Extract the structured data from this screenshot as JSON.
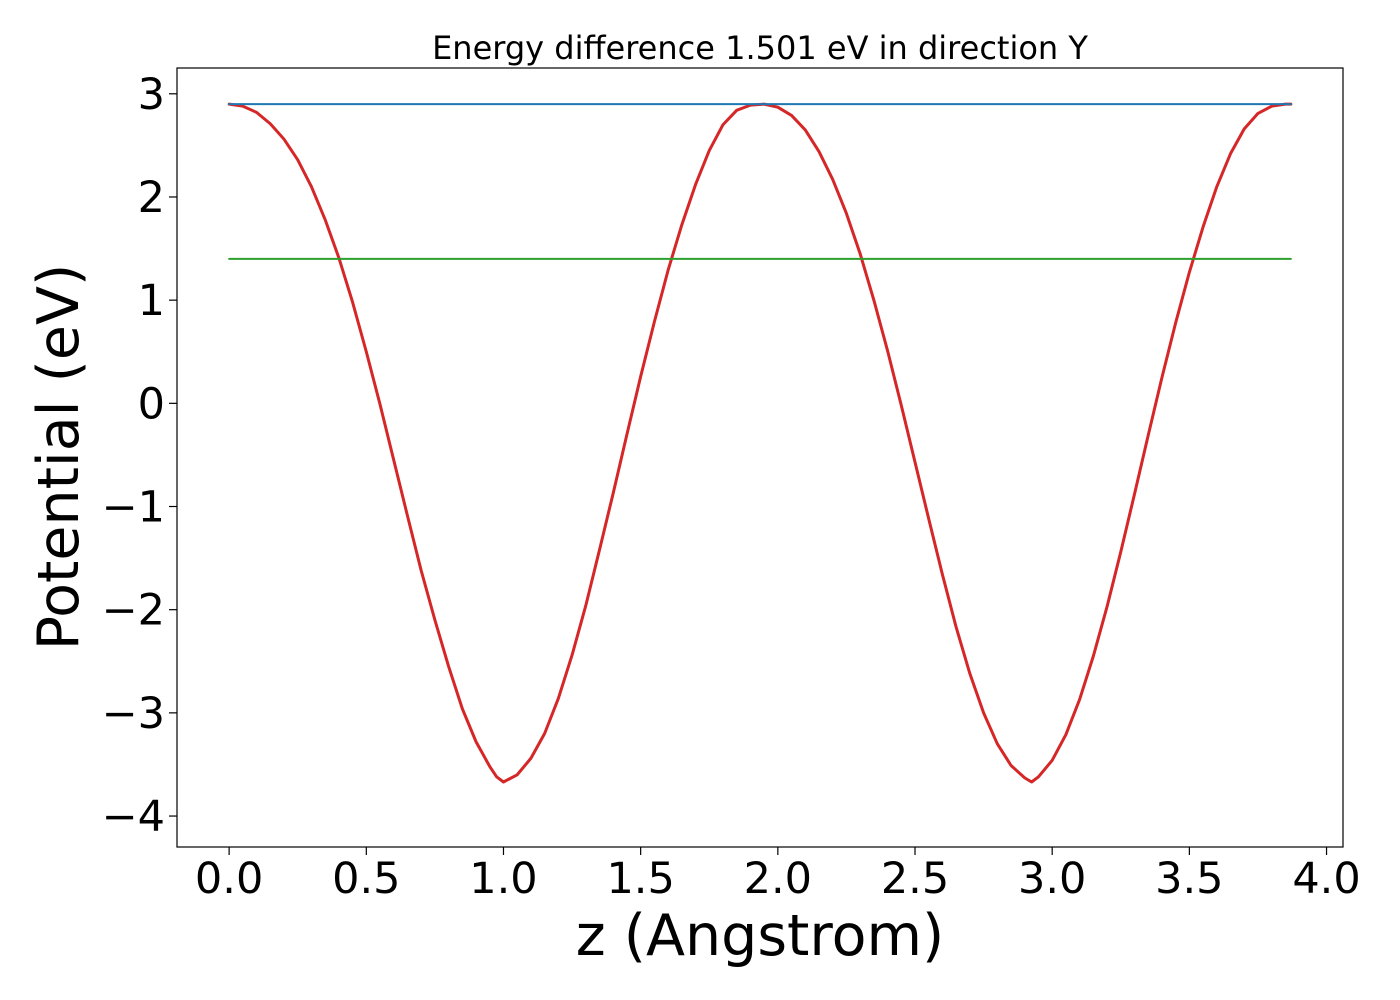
{
  "chart_data": {
    "type": "line",
    "title": "Energy difference 1.501 eV in direction Y",
    "xlabel": "z (Angstrom)",
    "ylabel": "Potential (eV)",
    "xlim": [
      -0.19,
      4.06
    ],
    "ylim": [
      -4.3,
      3.25
    ],
    "x_ticks": [
      0.0,
      0.5,
      1.0,
      1.5,
      2.0,
      2.5,
      3.0,
      3.5,
      4.0
    ],
    "x_tick_labels": [
      "0.0",
      "0.5",
      "1.0",
      "1.5",
      "2.0",
      "2.5",
      "3.0",
      "3.5",
      "4.0"
    ],
    "y_ticks": [
      -4,
      -3,
      -2,
      -1,
      0,
      1,
      2,
      3
    ],
    "y_tick_labels": [
      "−4",
      "−3",
      "−2",
      "−1",
      "0",
      "1",
      "2",
      "3"
    ],
    "grid": false,
    "series": [
      {
        "color": "#d62728",
        "kind": "curve",
        "x": [
          0.0,
          0.05,
          0.1,
          0.15,
          0.2,
          0.25,
          0.3,
          0.35,
          0.4,
          0.45,
          0.5,
          0.55,
          0.6,
          0.65,
          0.7,
          0.75,
          0.8,
          0.85,
          0.9,
          0.95,
          0.975,
          1.0,
          1.05,
          1.1,
          1.15,
          1.2,
          1.25,
          1.3,
          1.35,
          1.4,
          1.45,
          1.5,
          1.55,
          1.6,
          1.65,
          1.7,
          1.75,
          1.8,
          1.85,
          1.9,
          1.95,
          2.0,
          2.05,
          2.1,
          2.15,
          2.2,
          2.25,
          2.3,
          2.35,
          2.4,
          2.45,
          2.5,
          2.55,
          2.6,
          2.65,
          2.7,
          2.75,
          2.8,
          2.85,
          2.9,
          2.925,
          2.95,
          3.0,
          3.05,
          3.1,
          3.15,
          3.2,
          3.25,
          3.3,
          3.35,
          3.4,
          3.45,
          3.5,
          3.55,
          3.6,
          3.65,
          3.7,
          3.75,
          3.8,
          3.85,
          3.87
        ],
        "y": [
          2.9,
          2.88,
          2.82,
          2.71,
          2.56,
          2.36,
          2.1,
          1.78,
          1.41,
          0.98,
          0.5,
          -0.01,
          -0.55,
          -1.09,
          -1.62,
          -2.1,
          -2.55,
          -2.96,
          -3.28,
          -3.52,
          -3.62,
          -3.67,
          -3.6,
          -3.44,
          -3.2,
          -2.86,
          -2.44,
          -1.96,
          -1.42,
          -0.87,
          -0.3,
          0.26,
          0.79,
          1.29,
          1.73,
          2.12,
          2.45,
          2.7,
          2.84,
          2.89,
          2.9,
          2.87,
          2.79,
          2.65,
          2.44,
          2.17,
          1.84,
          1.45,
          1.0,
          0.51,
          -0.02,
          -0.57,
          -1.12,
          -1.66,
          -2.17,
          -2.62,
          -3.0,
          -3.3,
          -3.51,
          -3.63,
          -3.67,
          -3.62,
          -3.46,
          -3.21,
          -2.87,
          -2.45,
          -1.97,
          -1.44,
          -0.88,
          -0.31,
          0.25,
          0.78,
          1.27,
          1.71,
          2.1,
          2.42,
          2.66,
          2.81,
          2.88,
          2.9,
          2.9
        ]
      },
      {
        "color": "#1f77b4",
        "kind": "hline",
        "x": [
          0.0,
          3.87
        ],
        "y": [
          2.9,
          2.9
        ]
      },
      {
        "color": "#2ca02c",
        "kind": "hline",
        "x": [
          0.0,
          3.87
        ],
        "y": [
          1.4,
          1.4
        ]
      }
    ]
  }
}
